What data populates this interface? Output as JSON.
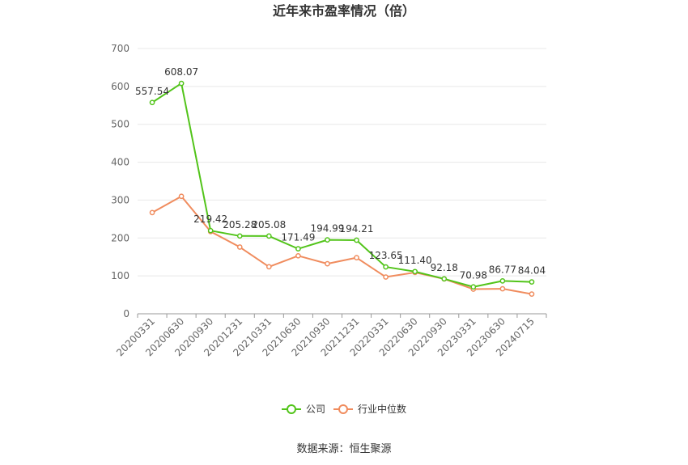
{
  "chart_data": {
    "type": "line",
    "title": "近年来市盈率情况（倍）",
    "categories": [
      "20200331",
      "20200630",
      "20200930",
      "20201231",
      "20210331",
      "20210630",
      "20210930",
      "20211231",
      "20220331",
      "20220630",
      "20220930",
      "20230331",
      "20230630",
      "20240715"
    ],
    "series": [
      {
        "name": "公司",
        "color": "#52c41a",
        "values": [
          557.54,
          608.07,
          219.42,
          205.28,
          205.08,
          171.49,
          194.99,
          194.21,
          123.65,
          111.4,
          92.18,
          70.98,
          86.77,
          84.04
        ],
        "labels": [
          "557.54",
          "608.07",
          "219.42",
          "205.28",
          "205.08",
          "171.49",
          "194.99",
          "194.21",
          "123.65",
          "111.40",
          "92.18",
          "70.98",
          "86.77",
          "84.04"
        ]
      },
      {
        "name": "行业中位数",
        "color": "#f08c5e",
        "values": [
          267,
          310,
          217,
          176,
          124,
          153,
          132,
          148,
          97,
          109,
          92,
          65,
          66,
          52
        ]
      }
    ],
    "ylim": [
      0,
      700
    ],
    "yticks": [
      "0",
      "100",
      "200",
      "300",
      "400",
      "500",
      "600",
      "700"
    ],
    "ytick_values": [
      0,
      100,
      200,
      300,
      400,
      500,
      600,
      700
    ],
    "grid": true,
    "legend_position": "bottom"
  },
  "source_text": "数据来源：恒生聚源"
}
